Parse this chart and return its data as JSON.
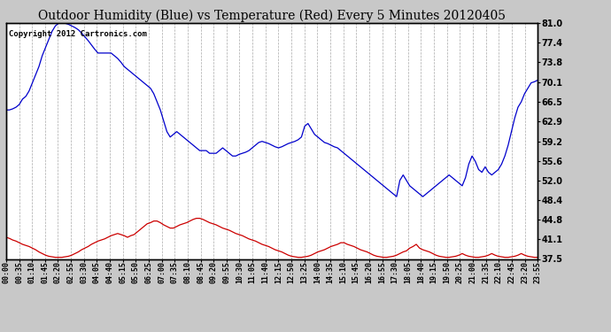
{
  "title": "Outdoor Humidity (Blue) vs Temperature (Red) Every 5 Minutes 20120405",
  "copyright_text": "Copyright 2012 Cartronics.com",
  "y_right_ticks": [
    37.5,
    41.1,
    44.8,
    48.4,
    52.0,
    55.6,
    59.2,
    62.9,
    66.5,
    70.1,
    73.8,
    77.4,
    81.0
  ],
  "x_tick_labels": [
    "00:00",
    "00:35",
    "01:10",
    "01:45",
    "02:20",
    "02:55",
    "03:30",
    "04:05",
    "04:40",
    "05:15",
    "05:50",
    "06:25",
    "07:00",
    "07:35",
    "08:10",
    "08:45",
    "09:20",
    "09:55",
    "10:30",
    "11:05",
    "11:40",
    "12:15",
    "12:50",
    "13:25",
    "14:00",
    "14:35",
    "15:10",
    "15:45",
    "16:20",
    "16:55",
    "17:30",
    "18:05",
    "18:40",
    "19:15",
    "19:50",
    "20:25",
    "21:00",
    "21:35",
    "22:10",
    "22:45",
    "23:20",
    "23:55"
  ],
  "blue_line_color": "#0000cc",
  "red_line_color": "#cc0000",
  "background_color": "#c8c8c8",
  "plot_bg_color": "#ffffff",
  "grid_color": "#a0a0a0",
  "title_fontsize": 10,
  "copyright_fontsize": 6.5,
  "tick_fontsize": 6,
  "y_min": 37.5,
  "y_max": 81.0,
  "humidity_data": [
    65.0,
    65.0,
    65.2,
    65.5,
    66.0,
    67.0,
    67.5,
    68.5,
    70.0,
    71.5,
    73.0,
    75.0,
    76.5,
    78.0,
    79.5,
    80.5,
    81.0,
    81.0,
    81.0,
    80.8,
    80.5,
    80.2,
    79.8,
    79.2,
    78.5,
    77.8,
    77.0,
    76.2,
    75.5,
    75.5,
    75.5,
    75.5,
    75.5,
    75.0,
    74.5,
    73.8,
    73.0,
    72.5,
    72.0,
    71.5,
    71.0,
    70.5,
    70.0,
    69.5,
    69.0,
    68.0,
    66.5,
    65.0,
    63.0,
    61.0,
    60.0,
    60.5,
    61.0,
    60.5,
    60.0,
    59.5,
    59.0,
    58.5,
    58.0,
    57.5,
    57.5,
    57.5,
    57.0,
    57.0,
    57.0,
    57.5,
    58.0,
    57.5,
    57.0,
    56.5,
    56.5,
    56.8,
    57.0,
    57.2,
    57.5,
    58.0,
    58.5,
    59.0,
    59.2,
    59.0,
    58.8,
    58.5,
    58.2,
    58.0,
    58.2,
    58.5,
    58.8,
    59.0,
    59.2,
    59.5,
    60.0,
    62.0,
    62.5,
    61.5,
    60.5,
    60.0,
    59.5,
    59.0,
    58.8,
    58.5,
    58.2,
    58.0,
    57.5,
    57.0,
    56.5,
    56.0,
    55.5,
    55.0,
    54.5,
    54.0,
    53.5,
    53.0,
    52.5,
    52.0,
    51.5,
    51.0,
    50.5,
    50.0,
    49.5,
    49.0,
    52.0,
    53.0,
    52.0,
    51.0,
    50.5,
    50.0,
    49.5,
    49.0,
    49.5,
    50.0,
    50.5,
    51.0,
    51.5,
    52.0,
    52.5,
    53.0,
    52.5,
    52.0,
    51.5,
    51.0,
    52.5,
    55.0,
    56.5,
    55.5,
    54.0,
    53.5,
    54.5,
    53.5,
    53.0,
    53.5,
    54.0,
    55.0,
    56.5,
    58.5,
    61.0,
    63.5,
    65.5,
    66.5,
    68.0,
    69.0,
    70.0,
    70.2,
    70.5
  ],
  "temperature_data": [
    41.5,
    41.3,
    41.0,
    40.8,
    40.5,
    40.2,
    40.0,
    39.8,
    39.5,
    39.2,
    38.8,
    38.5,
    38.2,
    38.0,
    37.9,
    37.8,
    37.8,
    37.8,
    37.9,
    38.0,
    38.2,
    38.5,
    38.8,
    39.2,
    39.5,
    39.8,
    40.2,
    40.5,
    40.8,
    41.0,
    41.2,
    41.5,
    41.8,
    42.0,
    42.2,
    42.0,
    41.8,
    41.5,
    41.8,
    42.0,
    42.5,
    43.0,
    43.5,
    44.0,
    44.2,
    44.5,
    44.5,
    44.2,
    43.8,
    43.5,
    43.2,
    43.2,
    43.5,
    43.8,
    44.0,
    44.2,
    44.5,
    44.8,
    45.0,
    45.0,
    44.8,
    44.5,
    44.2,
    44.0,
    43.8,
    43.5,
    43.2,
    43.0,
    42.8,
    42.5,
    42.2,
    42.0,
    41.8,
    41.5,
    41.2,
    41.0,
    40.8,
    40.5,
    40.2,
    40.0,
    39.8,
    39.5,
    39.2,
    39.0,
    38.8,
    38.5,
    38.2,
    38.0,
    37.9,
    37.8,
    37.8,
    37.9,
    38.0,
    38.2,
    38.5,
    38.8,
    39.0,
    39.2,
    39.5,
    39.8,
    40.0,
    40.2,
    40.5,
    40.5,
    40.2,
    40.0,
    39.8,
    39.5,
    39.2,
    39.0,
    38.8,
    38.5,
    38.2,
    38.0,
    37.9,
    37.8,
    37.8,
    37.9,
    38.0,
    38.2,
    38.5,
    38.8,
    39.0,
    39.5,
    39.8,
    40.2,
    39.5,
    39.2,
    39.0,
    38.8,
    38.5,
    38.2,
    38.0,
    37.9,
    37.8,
    37.8,
    37.9,
    38.0,
    38.2,
    38.5,
    38.2,
    38.0,
    37.9,
    37.8,
    37.8,
    37.9,
    38.0,
    38.2,
    38.5,
    38.2,
    38.0,
    37.9,
    37.8,
    37.8,
    37.9,
    38.0,
    38.2,
    38.5,
    38.2,
    38.0,
    37.9,
    37.8,
    37.8
  ]
}
